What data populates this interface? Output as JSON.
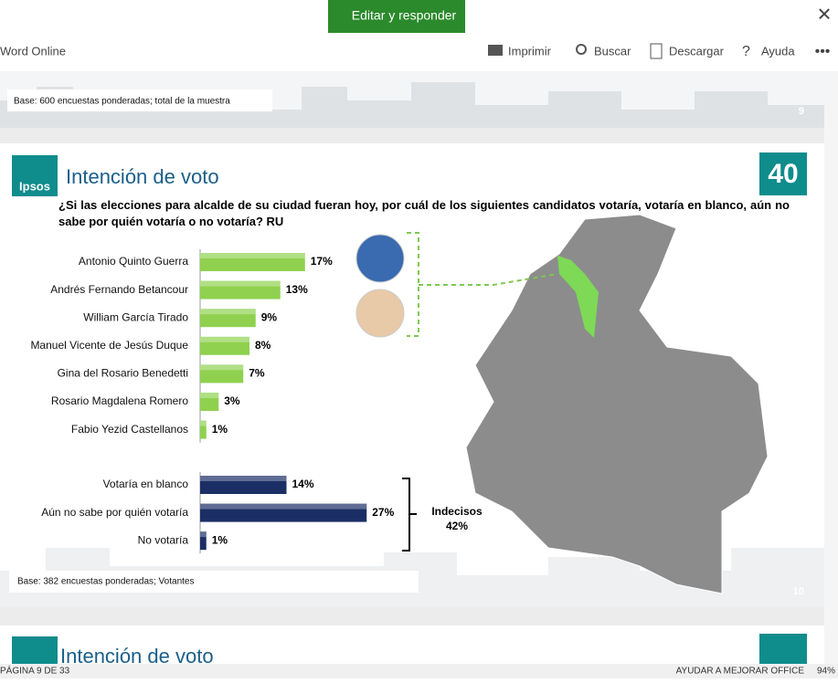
{
  "toolbar": {
    "edit_button": "Editar y responder",
    "app_name": "Word Online",
    "actions": [
      "Imprimir",
      "Buscar",
      "Descargar",
      "Ayuda"
    ]
  },
  "slide_prev": {
    "base_note": "Base: 600 encuestas ponderadas; total de la muestra",
    "page_number": "9"
  },
  "slide": {
    "brand": "Ipsos",
    "title": "Intención de voto",
    "logo_text": "40",
    "question": "¿Si las elecciones para alcalde de su ciudad fueran hoy, por cuál de los siguientes candidatos votaría, votaría en blanco, aún no sabe por quién votaría o no votaría? RU",
    "bracket_label": "Indecisos",
    "bracket_value": "42%",
    "base_note": "Base: 382 encuestas ponderadas; Votantes",
    "page_number": "10"
  },
  "chart_data": [
    {
      "type": "bar",
      "categories": [
        "Antonio Quinto Guerra",
        "Andrés Fernando Betancour",
        "William García Tirado",
        "Manuel Vicente de Jesús Duque",
        "Gina del Rosario Benedetti",
        "Rosario Magdalena Romero",
        "Fabio Yezid Castellanos"
      ],
      "values": [
        17,
        13,
        9,
        8,
        7,
        3,
        1
      ],
      "value_labels": [
        "17%",
        "13%",
        "9%",
        "8%",
        "7%",
        "3%",
        "1%"
      ],
      "color": "#8fd14f",
      "xlim": [
        0,
        40
      ]
    },
    {
      "type": "bar",
      "categories": [
        "Votaría en blanco",
        "Aún no sabe por quién votaría",
        "No votaría"
      ],
      "values": [
        14,
        27,
        1
      ],
      "value_labels": [
        "14%",
        "27%",
        "1%"
      ],
      "color": "#1b2f66",
      "xlim": [
        0,
        40
      ]
    }
  ],
  "slide_next": {
    "title": "Intención de voto"
  },
  "status_bar": {
    "page": "PÁGINA 9 DE 33",
    "help": "AYUDAR A MEJORAR OFFICE",
    "zoom": "94%"
  }
}
